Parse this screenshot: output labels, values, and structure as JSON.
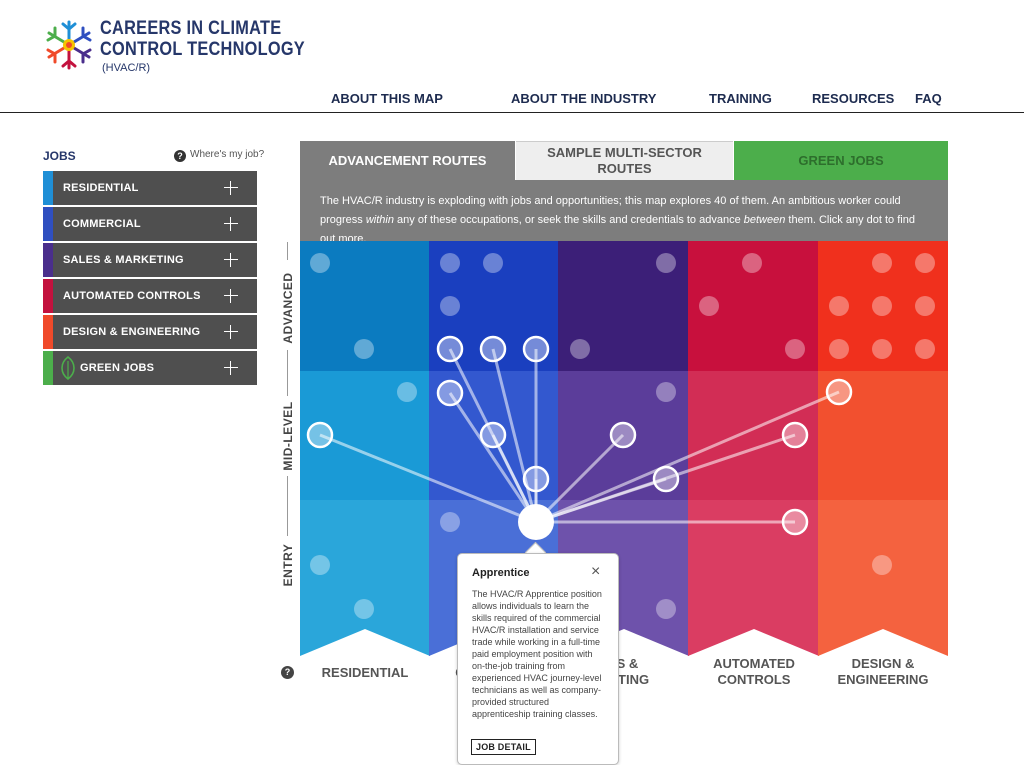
{
  "brand": {
    "line1": "CAREERS IN CLIMATE",
    "line2": "CONTROL TECHNOLOGY",
    "sub": "(HVAC/R)",
    "logo_icon": "snowflake-sun-icon"
  },
  "nav": {
    "items": [
      "ABOUT THIS MAP",
      "ABOUT THE INDUSTRY",
      "TRAINING",
      "RESOURCES",
      "FAQ"
    ]
  },
  "sidebar": {
    "title": "JOBS",
    "help_link": "Where's my job?",
    "items": [
      {
        "label": "RESIDENTIAL",
        "color": "#1f8fd6"
      },
      {
        "label": "COMMERCIAL",
        "color": "#2f4fc0"
      },
      {
        "label": "SALES & MARKETING",
        "color": "#4a2e8c"
      },
      {
        "label": "AUTOMATED CONTROLS",
        "color": "#c3123e"
      },
      {
        "label": "DESIGN & ENGINEERING",
        "color": "#f04a2a"
      },
      {
        "label": "GREEN JOBS",
        "color": "#4cae4b",
        "icon": "leaf-icon"
      }
    ]
  },
  "tabs": {
    "advancement": "ADVANCEMENT ROUTES",
    "multi_sector": "SAMPLE MULTI-SECTOR ROUTES",
    "green": "GREEN JOBS"
  },
  "intro": {
    "part1": "The HVAC/R industry is exploding with jobs and opportunities; this map explores 40 of them. An ambitious worker could progress ",
    "em1": "within",
    "part2": " any of these occupations, or seek the skills and credentials to advance ",
    "em2": "between",
    "part3": " them. Click any dot to find out more."
  },
  "levels": {
    "advanced": "ADVANCED",
    "mid": "MID-LEVEL",
    "entry": "ENTRY"
  },
  "columns": {
    "residential": "RESIDENTIAL",
    "commercial": "C",
    "sales_l1": "LES &",
    "sales_l2": "KETING",
    "automated_l1": "AUTOMATED",
    "automated_l2": "CONTROLS",
    "design_l1": "DESIGN &",
    "design_l2": "ENGINEERING"
  },
  "popup": {
    "title": "Apprentice",
    "body": "The HVAC/R Apprentice position allows individuals to learn the skills required of the commercial HVAC/R installation and service trade while working in a full-time paid employment position with on-the-job training from experienced HVAC journey-level technicians as well as company-provided structured apprenticeship training classes.",
    "button": "JOB DETAIL",
    "close_icon": "close-icon"
  },
  "colors": {
    "residential": [
      "#0b7bc0",
      "#1a9ad6",
      "#2aa6da"
    ],
    "commercial": [
      "#1a3fbf",
      "#3358cf",
      "#4a6fd7"
    ],
    "sales": [
      "#3c1f78",
      "#5b3d9a",
      "#6e52ab"
    ],
    "automated": [
      "#c8103d",
      "#d22d55",
      "#da3d62"
    ],
    "design": [
      "#f0301d",
      "#f2502f",
      "#f4623f"
    ]
  }
}
